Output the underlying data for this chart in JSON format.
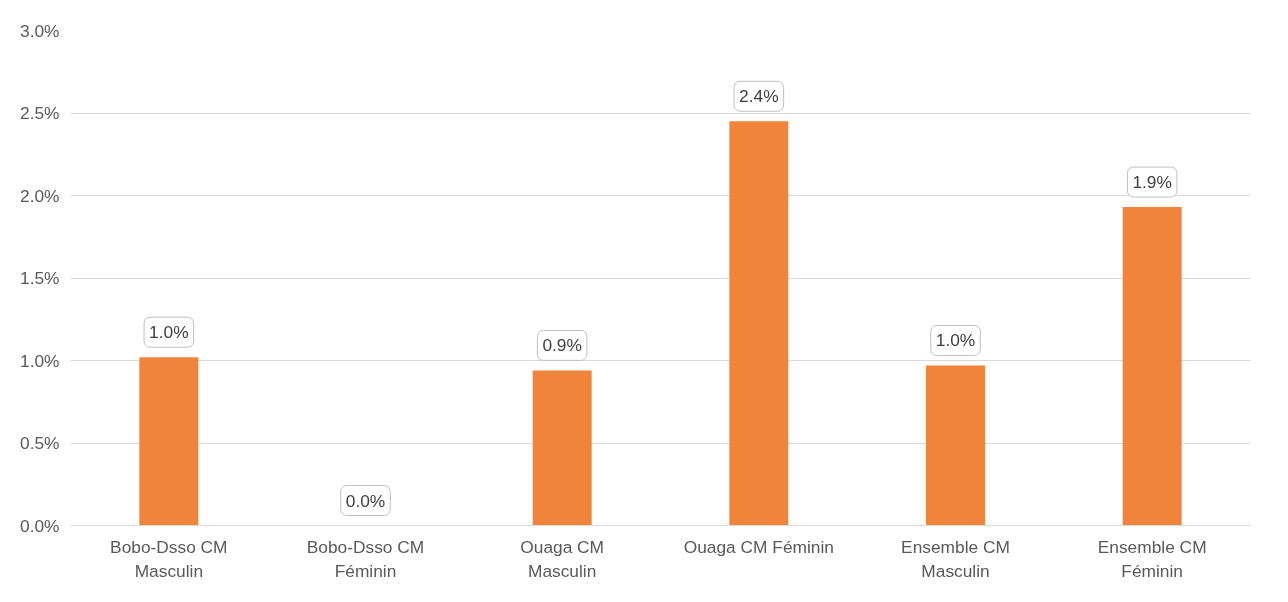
{
  "chart_data": {
    "type": "bar",
    "categories": [
      "Bobo-Dsso CM\nMasculin",
      "Bobo-Dsso CM\nFéminin",
      "Ouaga CM\nMasculin",
      "Ouaga CM Féminin",
      "Ensemble CM\nMasculin",
      "Ensemble CM\nFéminin"
    ],
    "values": [
      1.02,
      0,
      0.94,
      2.45,
      0.97,
      1.93
    ],
    "value_labels": [
      "1.0%",
      "0.0%",
      "0.9%",
      "2.4%",
      "1.0%",
      "1.9%"
    ],
    "color": "#f0843a",
    "ylim": [
      0,
      3
    ],
    "yticks": [
      {
        "value": 0,
        "label": "0.0%"
      },
      {
        "value": 0.5,
        "label": "0.5%"
      },
      {
        "value": 1,
        "label": "1.0%"
      },
      {
        "value": 1.5,
        "label": "1.5%"
      },
      {
        "value": 2,
        "label": "2.0%"
      },
      {
        "value": 2.5,
        "label": "2.5%"
      },
      {
        "value": 3,
        "label": "3.0%"
      }
    ],
    "grid": "y"
  }
}
